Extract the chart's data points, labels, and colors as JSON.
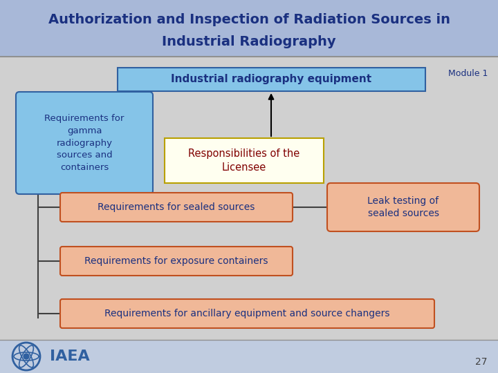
{
  "title_line1": "Authorization and Inspection of Radiation Sources in",
  "title_line2": "Industrial Radiography",
  "title_color": "#1a3080",
  "module_text": "Module 1",
  "page_num": "27",
  "bg_color": "#d8d8d8",
  "header_bg1": "#a8b8d8",
  "header_bg2": "#c0cce0",
  "content_bg": "#d0d0d0",
  "box_top_text": "Industrial radiography equipment",
  "box_top_fill": "#85c4e8",
  "box_top_edge": "#3060a0",
  "box_gamma_text": "Requirements for\ngamma\nradiography\nsources and\ncontainers",
  "box_gamma_fill": "#85c4e8",
  "box_gamma_edge": "#3060a0",
  "box_resp_text": "Responsibilities of the\nLicensee",
  "box_resp_fill": "#fffff0",
  "box_resp_edge": "#b8a000",
  "box_resp_text_color": "#800000",
  "box_sealed_text": "Requirements for sealed sources",
  "box_sealed_fill": "#f0b898",
  "box_sealed_edge": "#c05020",
  "box_leak_text": "Leak testing of\nsealed sources",
  "box_leak_fill": "#f0b898",
  "box_leak_edge": "#c05020",
  "box_exposure_text": "Requirements for exposure containers",
  "box_exposure_fill": "#f0b898",
  "box_exposure_edge": "#c05020",
  "box_ancillary_text": "Requirements for ancillary equipment and source changers",
  "box_ancillary_fill": "#f0b898",
  "box_ancillary_edge": "#c05020",
  "text_color_blue": "#1a3080",
  "bottom_bar_color": "#c0cce0",
  "line_color": "#404040",
  "iaea_color": "#3060a0"
}
